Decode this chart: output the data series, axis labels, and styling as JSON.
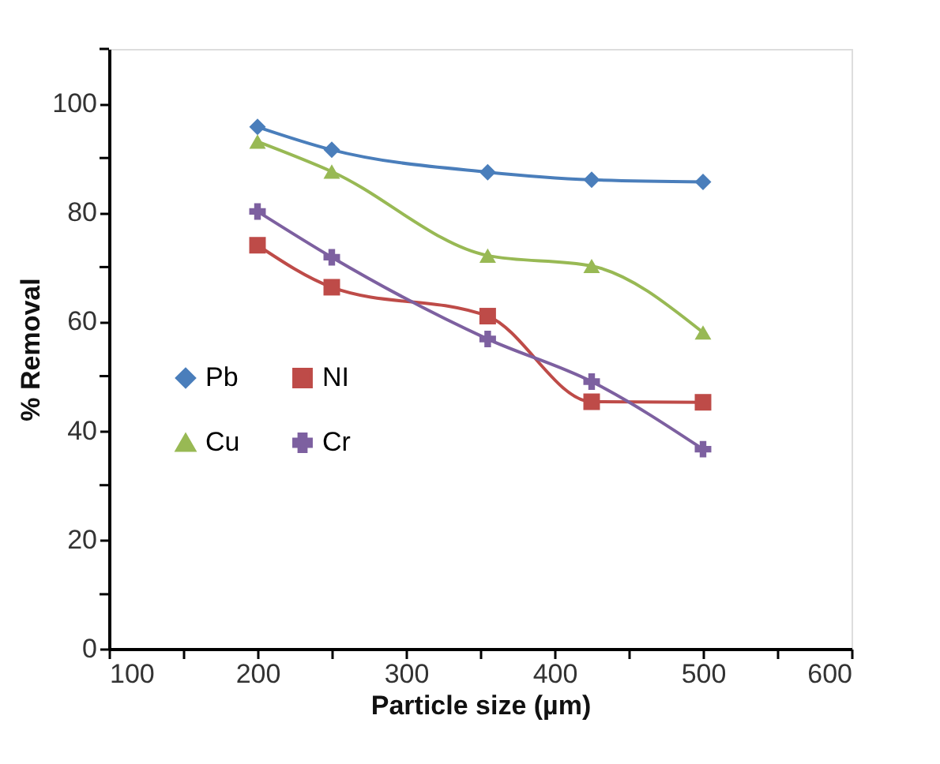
{
  "chart_data": {
    "type": "line",
    "xlabel": "Particle size (µm)",
    "ylabel": "% Removal",
    "x": [
      200,
      250,
      355,
      425,
      500
    ],
    "xlim": [
      100,
      600
    ],
    "xticks": [
      100,
      {
        "value": 150,
        "label": null
      },
      200,
      {
        "value": 250,
        "label": null
      },
      300,
      {
        "value": 350,
        "label": null
      },
      400,
      {
        "value": 450,
        "label": null
      },
      500,
      {
        "value": 550,
        "label": null
      },
      600
    ],
    "ylim": [
      0,
      110
    ],
    "yticks": [
      0,
      {
        "value": 10,
        "label": null
      },
      20,
      {
        "value": 30,
        "label": null
      },
      40,
      {
        "value": 50,
        "label": null
      },
      60,
      {
        "value": 70,
        "label": null
      },
      80,
      {
        "value": 90,
        "label": null
      },
      100,
      {
        "value": 110,
        "label": null
      }
    ],
    "grid": false,
    "legend": "left",
    "line_style": "solid",
    "series": [
      {
        "name": "Pb",
        "color": "#4a7ebb",
        "marker": "diamond",
        "values": [
          95.7,
          91.5,
          87.4,
          86.0,
          85.6
        ]
      },
      {
        "name": "NI",
        "color": "#be4b48",
        "marker": "square",
        "values": [
          74.0,
          66.3,
          61.0,
          45.3,
          45.2
        ]
      },
      {
        "name": "Cu",
        "color": "#98b954",
        "marker": "triangle",
        "values": [
          93.0,
          87.5,
          72.1,
          70.2,
          58.0
        ]
      },
      {
        "name": "Cr",
        "color": "#7d60a0",
        "marker": "cross",
        "values": [
          80.2,
          71.8,
          56.8,
          49.0,
          36.6
        ]
      }
    ]
  }
}
